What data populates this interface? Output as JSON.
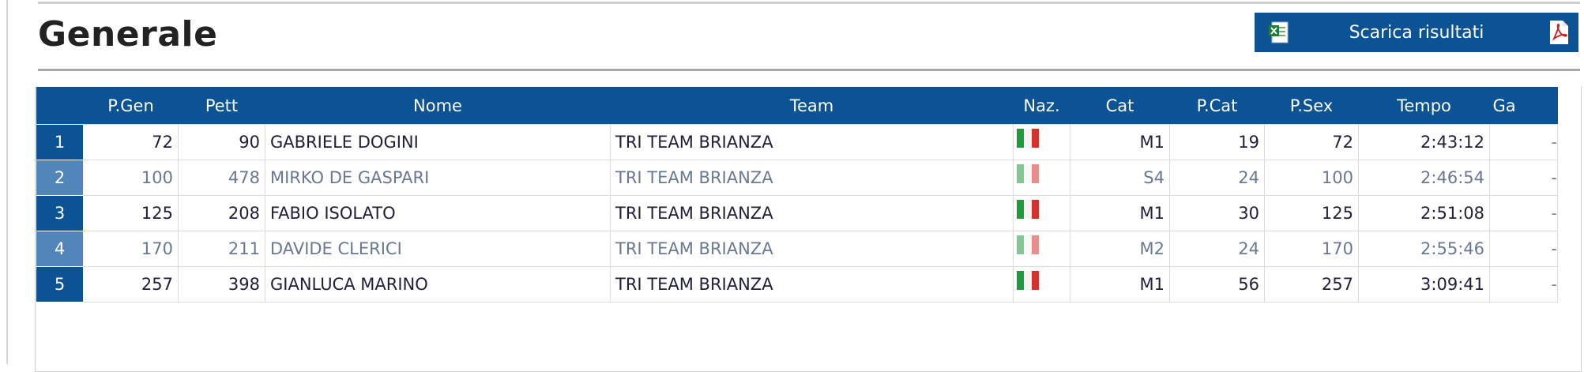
{
  "page": {
    "title": "Generale",
    "download_label": "Scarica risultati",
    "xls_icon": "excel-file-icon",
    "pdf_icon": "pdf-file-icon"
  },
  "colors": {
    "header_bg": "#0b5394",
    "rank_dark": "#0b5394",
    "rank_light": "#5285b9",
    "text_dark": "#1f1f3a",
    "text_muted": "#6a7890"
  },
  "table": {
    "columns": [
      "",
      "P.Gen",
      "Pett",
      "Nome",
      "Team",
      "Naz.",
      "Cat",
      "P.Cat",
      "P.Sex",
      "Tempo",
      "Ga"
    ],
    "rows": [
      {
        "rank": "1",
        "pgen": "72",
        "pett": "90",
        "nome": "GABRIELE DOGINI",
        "team": "TRI TEAM BRIANZA",
        "naz": "italy-flag-icon",
        "cat": "M1",
        "pcat": "19",
        "psex": "72",
        "tempo": "2:43:12",
        "gap": "-"
      },
      {
        "rank": "2",
        "pgen": "100",
        "pett": "478",
        "nome": "MIRKO DE GASPARI",
        "team": "TRI TEAM BRIANZA",
        "naz": "italy-flag-icon",
        "cat": "S4",
        "pcat": "24",
        "psex": "100",
        "tempo": "2:46:54",
        "gap": "-"
      },
      {
        "rank": "3",
        "pgen": "125",
        "pett": "208",
        "nome": "FABIO ISOLATO",
        "team": "TRI TEAM BRIANZA",
        "naz": "italy-flag-icon",
        "cat": "M1",
        "pcat": "30",
        "psex": "125",
        "tempo": "2:51:08",
        "gap": "-"
      },
      {
        "rank": "4",
        "pgen": "170",
        "pett": "211",
        "nome": "DAVIDE CLERICI",
        "team": "TRI TEAM BRIANZA",
        "naz": "italy-flag-icon",
        "cat": "M2",
        "pcat": "24",
        "psex": "170",
        "tempo": "2:55:46",
        "gap": "-"
      },
      {
        "rank": "5",
        "pgen": "257",
        "pett": "398",
        "nome": "GIANLUCA MARINO",
        "team": "TRI TEAM BRIANZA",
        "naz": "italy-flag-icon",
        "cat": "M1",
        "pcat": "56",
        "psex": "257",
        "tempo": "3:09:41",
        "gap": "-"
      }
    ]
  }
}
